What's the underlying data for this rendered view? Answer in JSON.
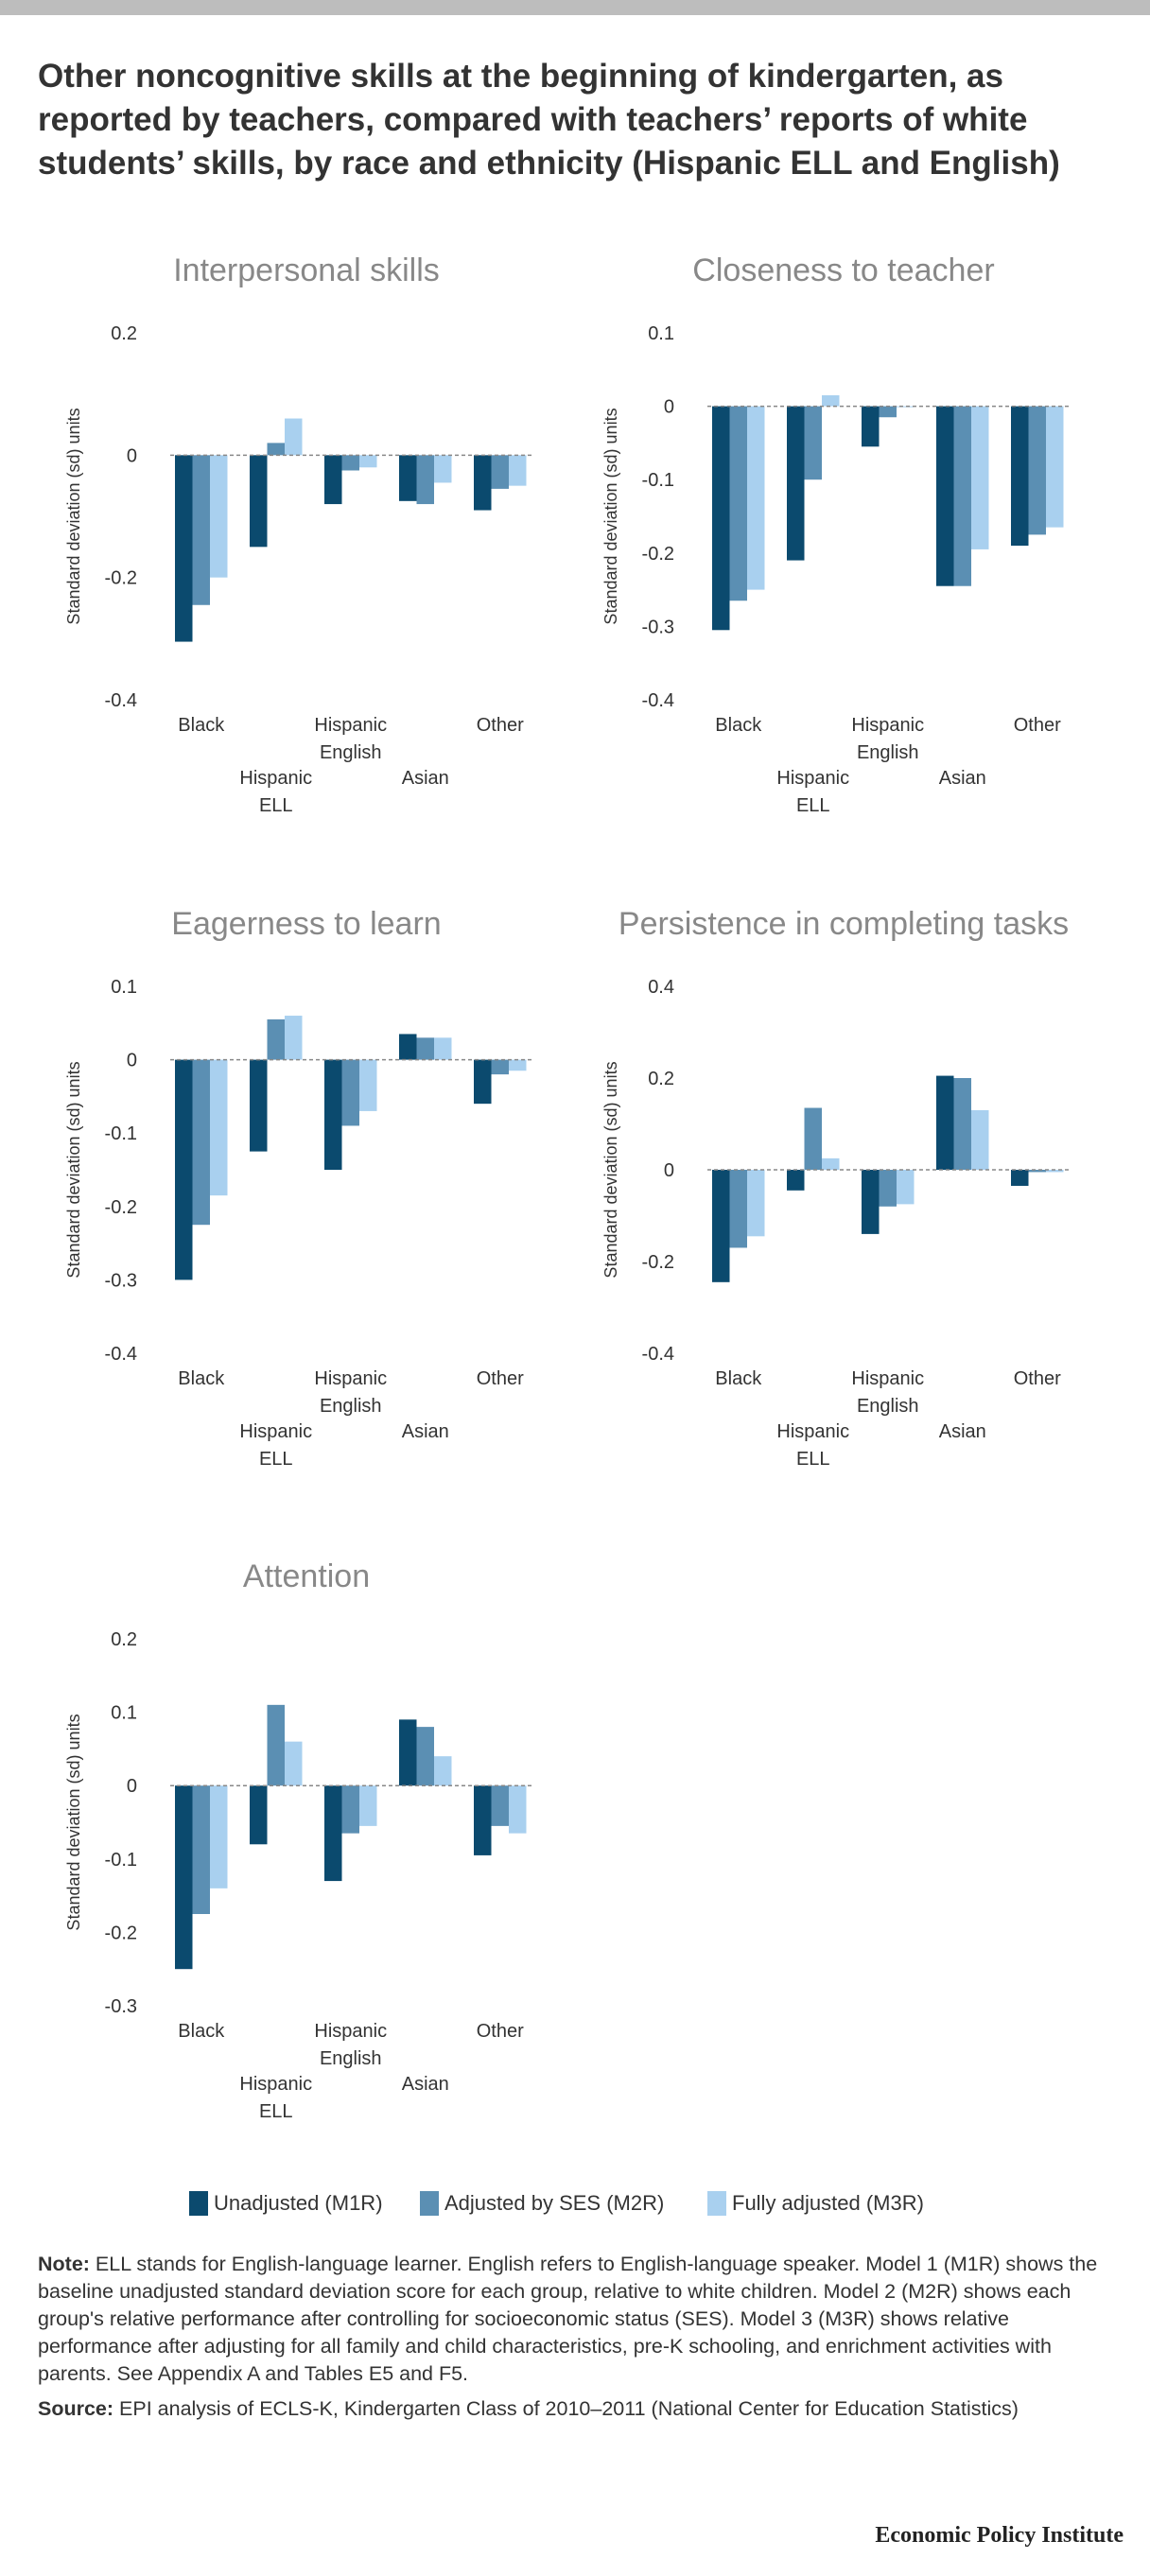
{
  "title": "Other noncognitive skills at the beginning of kindergarten, as reported by teachers, compared with teachers’ reports of white students’ skills, by race and ethnicity (Hispanic ELL and English)",
  "colors": {
    "m1": "#0b4a6e",
    "m2": "#5b8fb3",
    "m3": "#a9d0ef",
    "zero_line": "#888888",
    "title_gray": "#888888"
  },
  "legend": [
    {
      "label": "Unadjusted (M1R)"
    },
    {
      "label": "Adjusted by SES (M2R)"
    },
    {
      "label": "Fully adjusted (M3R)"
    }
  ],
  "chart_data": [
    {
      "type": "bar",
      "title": "Interpersonal skills",
      "ylabel": "Standard deviation (sd) units",
      "ylim": [
        -0.4,
        0.2
      ],
      "yticks": [
        {
          "v": 0.2,
          "label": "0.2"
        },
        {
          "v": 0,
          "label": "0"
        },
        {
          "v": -0.2,
          "label": "-0.2"
        },
        {
          "v": -0.4,
          "label": "-0.4"
        }
      ],
      "categories": [
        "Black",
        "Hispanic ELL",
        "Hispanic English",
        "Asian",
        "Other"
      ],
      "series": [
        {
          "name": "Unadjusted (M1R)",
          "values": [
            -0.305,
            -0.15,
            -0.08,
            -0.075,
            -0.09
          ]
        },
        {
          "name": "Adjusted by SES (M2R)",
          "values": [
            -0.245,
            0.02,
            -0.025,
            -0.08,
            -0.055
          ]
        },
        {
          "name": "Fully adjusted (M3R)",
          "values": [
            -0.2,
            0.06,
            -0.02,
            -0.045,
            -0.05
          ]
        }
      ]
    },
    {
      "type": "bar",
      "title": "Closeness to teacher",
      "ylabel": "Standard deviation (sd) units",
      "ylim": [
        -0.4,
        0.1
      ],
      "yticks": [
        {
          "v": 0.1,
          "label": "0.1"
        },
        {
          "v": 0,
          "label": "0"
        },
        {
          "v": -0.1,
          "label": "-0.1"
        },
        {
          "v": -0.2,
          "label": "-0.2"
        },
        {
          "v": -0.3,
          "label": "-0.3"
        },
        {
          "v": -0.4,
          "label": "-0.4"
        }
      ],
      "categories": [
        "Black",
        "Hispanic ELL",
        "Hispanic English",
        "Asian",
        "Other"
      ],
      "series": [
        {
          "name": "Unadjusted (M1R)",
          "values": [
            -0.305,
            -0.21,
            -0.055,
            -0.245,
            -0.19
          ]
        },
        {
          "name": "Adjusted by SES (M2R)",
          "values": [
            -0.265,
            -0.1,
            -0.015,
            -0.245,
            -0.175
          ]
        },
        {
          "name": "Fully adjusted (M3R)",
          "values": [
            -0.25,
            0.015,
            0,
            -0.195,
            -0.165
          ]
        }
      ]
    },
    {
      "type": "bar",
      "title": "Eagerness to learn",
      "ylabel": "Standard deviation (sd) units",
      "ylim": [
        -0.4,
        0.1
      ],
      "yticks": [
        {
          "v": 0.1,
          "label": "0.1"
        },
        {
          "v": 0,
          "label": "0"
        },
        {
          "v": -0.1,
          "label": "-0.1"
        },
        {
          "v": -0.2,
          "label": "-0.2"
        },
        {
          "v": -0.3,
          "label": "-0.3"
        },
        {
          "v": -0.4,
          "label": "-0.4"
        }
      ],
      "categories": [
        "Black",
        "Hispanic ELL",
        "Hispanic English",
        "Asian",
        "Other"
      ],
      "series": [
        {
          "name": "Unadjusted (M1R)",
          "values": [
            -0.3,
            -0.125,
            -0.15,
            0.035,
            -0.06
          ]
        },
        {
          "name": "Adjusted by SES (M2R)",
          "values": [
            -0.225,
            0.055,
            -0.09,
            0.03,
            -0.02
          ]
        },
        {
          "name": "Fully adjusted (M3R)",
          "values": [
            -0.185,
            0.06,
            -0.07,
            0.03,
            -0.015
          ]
        }
      ]
    },
    {
      "type": "bar",
      "title": "Persistence in completing tasks",
      "ylabel": "Standard deviation (sd) units",
      "ylim": [
        -0.4,
        0.4
      ],
      "yticks": [
        {
          "v": 0.4,
          "label": "0.4"
        },
        {
          "v": 0.2,
          "label": "0.2"
        },
        {
          "v": 0,
          "label": "0"
        },
        {
          "v": -0.2,
          "label": "-0.2"
        },
        {
          "v": -0.4,
          "label": "-0.4"
        }
      ],
      "categories": [
        "Black",
        "Hispanic ELL",
        "Hispanic English",
        "Asian",
        "Other"
      ],
      "series": [
        {
          "name": "Unadjusted (M1R)",
          "values": [
            -0.245,
            -0.045,
            -0.14,
            0.205,
            -0.035
          ]
        },
        {
          "name": "Adjusted by SES (M2R)",
          "values": [
            -0.17,
            0.135,
            -0.08,
            0.2,
            -0.005
          ]
        },
        {
          "name": "Fully adjusted (M3R)",
          "values": [
            -0.145,
            0.025,
            -0.075,
            0.13,
            -0.005
          ]
        }
      ]
    },
    {
      "type": "bar",
      "title": "Attention",
      "ylabel": "Standard deviation (sd) units",
      "ylim": [
        -0.3,
        0.2
      ],
      "yticks": [
        {
          "v": 0.2,
          "label": "0.2"
        },
        {
          "v": 0.1,
          "label": "0.1"
        },
        {
          "v": 0,
          "label": "0"
        },
        {
          "v": -0.1,
          "label": "-0.1"
        },
        {
          "v": -0.2,
          "label": "-0.2"
        },
        {
          "v": -0.3,
          "label": "-0.3"
        }
      ],
      "categories": [
        "Black",
        "Hispanic ELL",
        "Hispanic English",
        "Asian",
        "Other"
      ],
      "series": [
        {
          "name": "Unadjusted (M1R)",
          "values": [
            -0.25,
            -0.08,
            -0.13,
            0.09,
            -0.095
          ]
        },
        {
          "name": "Adjusted by SES (M2R)",
          "values": [
            -0.175,
            0.11,
            -0.065,
            0.08,
            -0.055
          ]
        },
        {
          "name": "Fully adjusted (M3R)",
          "values": [
            -0.14,
            0.06,
            -0.055,
            0.04,
            -0.065
          ]
        }
      ]
    }
  ],
  "category_label_lines": [
    [
      "Black"
    ],
    [
      "Hispanic",
      "ELL"
    ],
    [
      "Hispanic",
      "English"
    ],
    [
      "Asian"
    ],
    [
      "Other"
    ]
  ],
  "note": {
    "label": "Note:",
    "text": " ELL stands for English-language learner. English refers to English-language speaker. Model 1 (M1R) shows the baseline unadjusted standard deviation score for each group, relative to white children. Model 2 (M2R) shows each group's relative performance after controlling for socioeconomic status (SES). Model 3 (M3R) shows relative performance after adjusting for all family and child characteristics, pre-K schooling, and enrichment activities with parents. See Appendix A and Tables E5 and F5."
  },
  "source": {
    "label": "Source:",
    "text": " EPI analysis of ECLS-K, Kindergarten Class of 2010–2011 (National Center for Education Statistics)"
  },
  "brand": "Economic Policy Institute"
}
